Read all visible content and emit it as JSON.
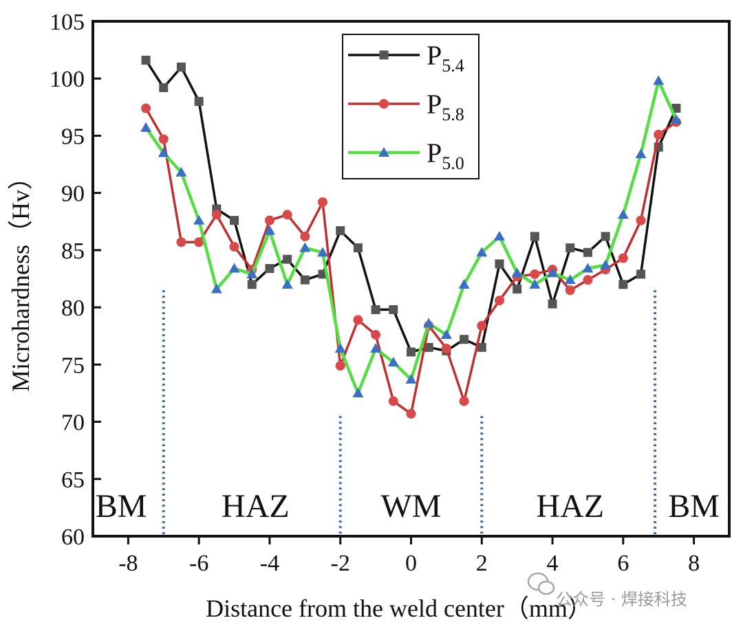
{
  "chart_data": {
    "type": "line",
    "xlabel": "Distance from the weld center（mm）",
    "ylabel": "Microhardness（Hv）",
    "xlim": [
      -9,
      9
    ],
    "ylim": [
      60,
      105
    ],
    "x_ticks": [
      "-8",
      "-6",
      "-4",
      "-2",
      "0",
      "2",
      "4",
      "6",
      "8"
    ],
    "y_ticks": [
      "60",
      "65",
      "70",
      "75",
      "80",
      "85",
      "90",
      "95",
      "100",
      "105"
    ],
    "grid": false,
    "legend_position": "top-center",
    "regions": [
      {
        "label": "BM",
        "x_center": -8.2
      },
      {
        "label": "HAZ",
        "x_center": -4.4
      },
      {
        "label": "WM",
        "x_center": 0.0
      },
      {
        "label": "HAZ",
        "x_center": 4.5
      },
      {
        "label": "BM",
        "x_center": 8.0
      }
    ],
    "boundaries": [
      {
        "x": -7.0,
        "y_top": 81.5
      },
      {
        "x": -2.0,
        "y_top": 70.5
      },
      {
        "x": 2.0,
        "y_top": 70.5
      },
      {
        "x": 6.9,
        "y_top": 81.5
      }
    ],
    "series": [
      {
        "name": "P",
        "subscript": "5.4",
        "color": "#111111",
        "marker_color": "#555555",
        "marker": "square",
        "x": [
          -7.5,
          -7.0,
          -6.5,
          -6.0,
          -5.5,
          -5.0,
          -4.5,
          -4.0,
          -3.5,
          -3.0,
          -2.5,
          -2.0,
          -1.5,
          -1.0,
          -0.5,
          0.0,
          0.5,
          1.0,
          1.5,
          2.0,
          2.5,
          3.0,
          3.5,
          4.0,
          4.5,
          5.0,
          5.5,
          6.0,
          6.5,
          7.0,
          7.5
        ],
        "values": [
          101.6,
          99.2,
          101.0,
          98.0,
          88.6,
          87.6,
          82.0,
          83.4,
          84.2,
          82.4,
          82.9,
          86.7,
          85.2,
          79.8,
          79.8,
          76.1,
          76.5,
          76.2,
          77.2,
          76.5,
          83.8,
          81.6,
          86.2,
          80.3,
          85.2,
          84.8,
          86.2,
          82.0,
          82.9,
          94.0,
          97.4
        ]
      },
      {
        "name": "P",
        "subscript": "5.8",
        "color": "#c03030",
        "marker_color": "#d84a4a",
        "marker": "circle",
        "x": [
          -7.5,
          -7.0,
          -6.5,
          -6.0,
          -5.5,
          -5.0,
          -4.5,
          -4.0,
          -3.5,
          -3.0,
          -2.5,
          -2.0,
          -1.5,
          -1.0,
          -0.5,
          0.0,
          0.5,
          1.0,
          1.5,
          2.0,
          2.5,
          3.0,
          3.5,
          4.0,
          4.5,
          5.0,
          5.5,
          6.0,
          6.5,
          7.0,
          7.5
        ],
        "values": [
          97.4,
          94.7,
          85.7,
          85.7,
          88.1,
          85.3,
          83.3,
          87.6,
          88.1,
          86.2,
          89.2,
          74.9,
          78.9,
          77.6,
          71.8,
          70.7,
          78.4,
          76.4,
          71.8,
          78.4,
          80.6,
          82.7,
          82.9,
          83.3,
          81.5,
          82.4,
          83.3,
          84.3,
          87.6,
          95.1,
          96.2
        ]
      },
      {
        "name": "P",
        "subscript": "5.0",
        "color": "#55dd44",
        "marker_color": "#3a6fc4",
        "marker": "triangle",
        "x": [
          -7.5,
          -7.0,
          -6.5,
          -6.0,
          -5.5,
          -5.0,
          -4.5,
          -4.0,
          -3.5,
          -3.0,
          -2.5,
          -2.0,
          -1.5,
          -1.0,
          -0.5,
          0.0,
          0.5,
          1.0,
          1.5,
          2.0,
          2.5,
          3.0,
          3.5,
          4.0,
          4.5,
          5.0,
          5.5,
          6.0,
          6.5,
          7.0,
          7.5
        ],
        "values": [
          95.7,
          93.5,
          91.8,
          87.6,
          81.6,
          83.4,
          82.9,
          86.7,
          82.0,
          85.2,
          84.8,
          76.4,
          72.5,
          76.4,
          75.2,
          73.7,
          78.6,
          77.6,
          82.0,
          84.8,
          86.2,
          83.0,
          82.0,
          83.0,
          82.4,
          83.4,
          83.7,
          88.1,
          93.4,
          99.8,
          96.4
        ]
      }
    ]
  },
  "watermark": {
    "text": "公众号 · 焊接科技"
  }
}
